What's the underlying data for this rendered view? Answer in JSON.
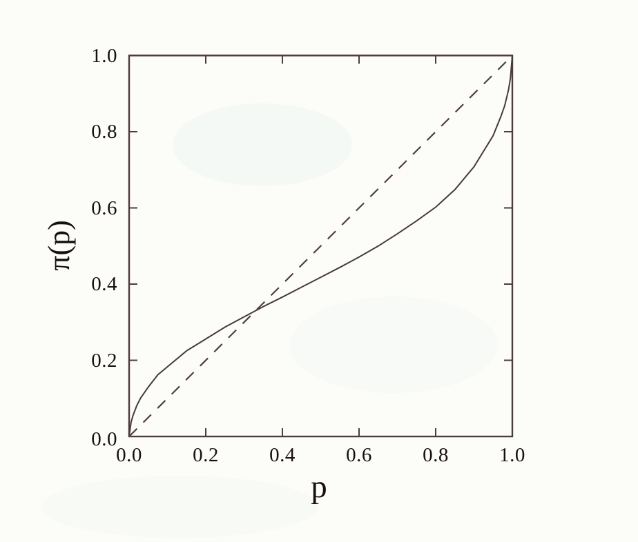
{
  "figure": {
    "background_color": "#fcfcf8",
    "frame_color": "#4e3a40",
    "text_color": "#17100f"
  },
  "chart_data": {
    "type": "line",
    "title": "",
    "xlabel": "p",
    "ylabel": "π(p)",
    "xlim": [
      0,
      1
    ],
    "ylim": [
      0,
      1
    ],
    "x_ticks": [
      0,
      0.2,
      0.4,
      0.6,
      0.8,
      1
    ],
    "x_tick_labels": [
      "0.0",
      "0.2",
      "0.4",
      "0.6",
      "0.8",
      "1.0"
    ],
    "y_ticks": [
      0,
      0.2,
      0.4,
      0.6,
      0.8,
      1
    ],
    "y_tick_labels": [
      "0.0",
      "0.2",
      "0.4",
      "0.6",
      "0.8",
      "1.0"
    ],
    "grid": false,
    "legend": "none",
    "series": [
      {
        "name": "probability-weighting-curve",
        "style": "solid",
        "color": "#483a39",
        "width": 2,
        "x": [
          0,
          0.005,
          0.01,
          0.02,
          0.03,
          0.05,
          0.075,
          0.1,
          0.15,
          0.2,
          0.25,
          0.3,
          0.35,
          0.4,
          0.45,
          0.5,
          0.55,
          0.6,
          0.65,
          0.7,
          0.75,
          0.8,
          0.85,
          0.9,
          0.95,
          0.97,
          0.98,
          0.99,
          0.995,
          1
        ],
        "y": [
          0,
          0.037,
          0.055,
          0.081,
          0.101,
          0.13,
          0.162,
          0.183,
          0.225,
          0.256,
          0.287,
          0.314,
          0.341,
          0.366,
          0.392,
          0.418,
          0.444,
          0.471,
          0.5,
          0.532,
          0.566,
          0.602,
          0.648,
          0.708,
          0.79,
          0.84,
          0.868,
          0.91,
          0.94,
          1
        ],
        "crosses_diagonal_at": 0.33
      },
      {
        "name": "identity-line",
        "style": "dashed",
        "color": "#513f3f",
        "width": 2.2,
        "x": [
          0,
          1
        ],
        "y": [
          0,
          1
        ]
      }
    ]
  }
}
